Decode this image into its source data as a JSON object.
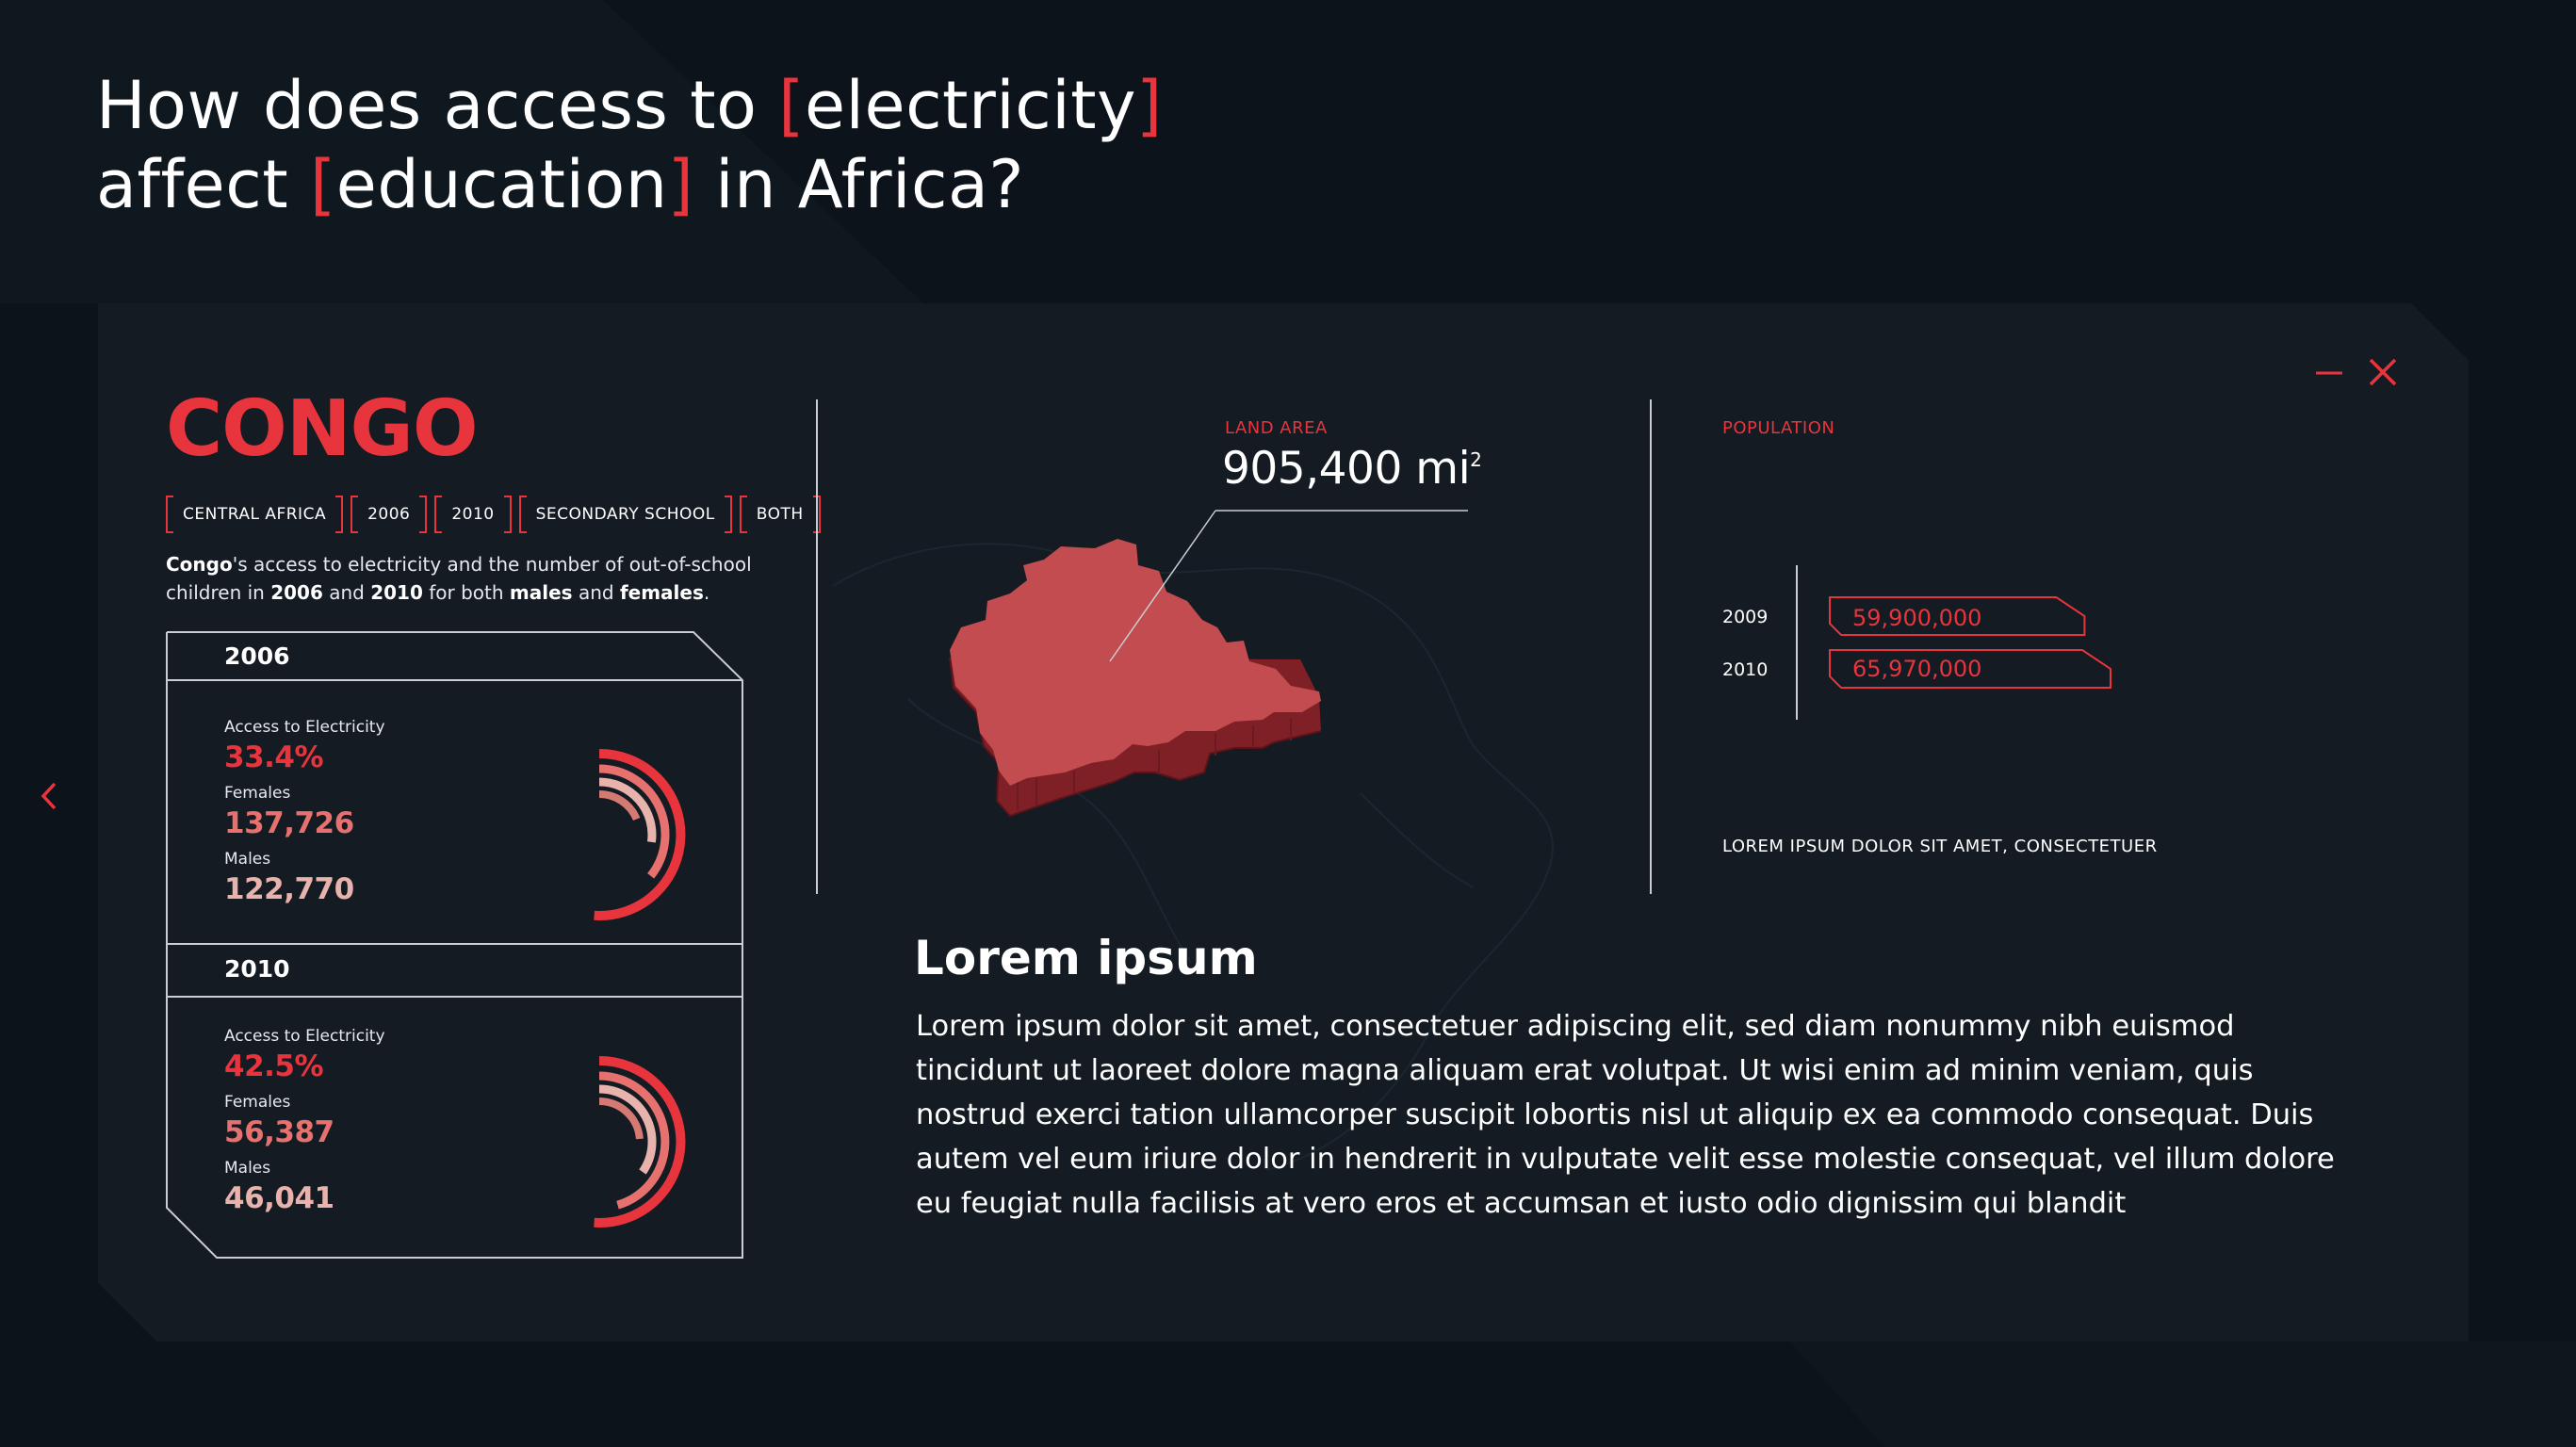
{
  "headline": {
    "part1": "How does access to ",
    "word1": "electricity",
    "part2": "affect ",
    "word2": "education",
    "part3": " in Africa?",
    "open_bracket": "[",
    "close_bracket": "]"
  },
  "country": {
    "name": "CONGO",
    "tags": [
      "CENTRAL AFRICA",
      "2006",
      "2010",
      "SECONDARY SCHOOL",
      "BOTH"
    ],
    "description": {
      "c1": "Congo",
      "t1": "'s access to electricity and the number of out-of-school children in ",
      "c2": "2006",
      "t2": " and ",
      "c3": "2010",
      "t3": " for both ",
      "c4": "males",
      "t4": " and ",
      "c5": "females",
      "t5": "."
    }
  },
  "years": [
    {
      "year": "2006",
      "access_label": "Access to Electricity",
      "access_value": "33.4%",
      "females_label": "Females",
      "females_value": "137,726",
      "males_label": "Males",
      "males_value": "122,770",
      "access_fraction": 0.334
    },
    {
      "year": "2010",
      "access_label": "Access to Electricity",
      "access_value": "42.5%",
      "females_label": "Females",
      "females_value": "56,387",
      "males_label": "Males",
      "males_value": "46,041",
      "access_fraction": 0.425
    }
  ],
  "land": {
    "label": "LAND AREA",
    "value": "905,400 mi",
    "unit_sup": "2"
  },
  "population": {
    "label": "POPULATION",
    "rows": [
      {
        "year": "2009",
        "value": "59,900,000",
        "amount": 59900000
      },
      {
        "year": "2010",
        "value": "65,970,000",
        "amount": 65970000
      }
    ],
    "note": "LOREM IPSUM DOLOR SIT AMET, CONSECTETUER"
  },
  "article": {
    "title": "Lorem ipsum",
    "body": "Lorem ipsum dolor sit amet, consectetuer adipiscing elit, sed diam nonummy nibh euismod tincidunt ut laoreet dolore magna aliquam erat volutpat. Ut wisi enim ad minim veniam, quis nostrud exerci tation ullamcorper suscipit lobortis nisl ut aliquip ex ea commodo consequat. Duis autem vel eum iriure dolor in hendrerit in vulputate velit esse molestie consequat, vel illum dolore eu feugiat nulla facilisis at vero eros et accumsan et iusto odio dignissim qui blandit"
  },
  "icons": {
    "minimize": "minimize-icon",
    "close": "close-icon",
    "prev": "chevron-left-icon"
  },
  "colors": {
    "accent": "#e8343c",
    "background": "#0c131b",
    "panel": "#141b23",
    "map": "#c24c4f"
  }
}
